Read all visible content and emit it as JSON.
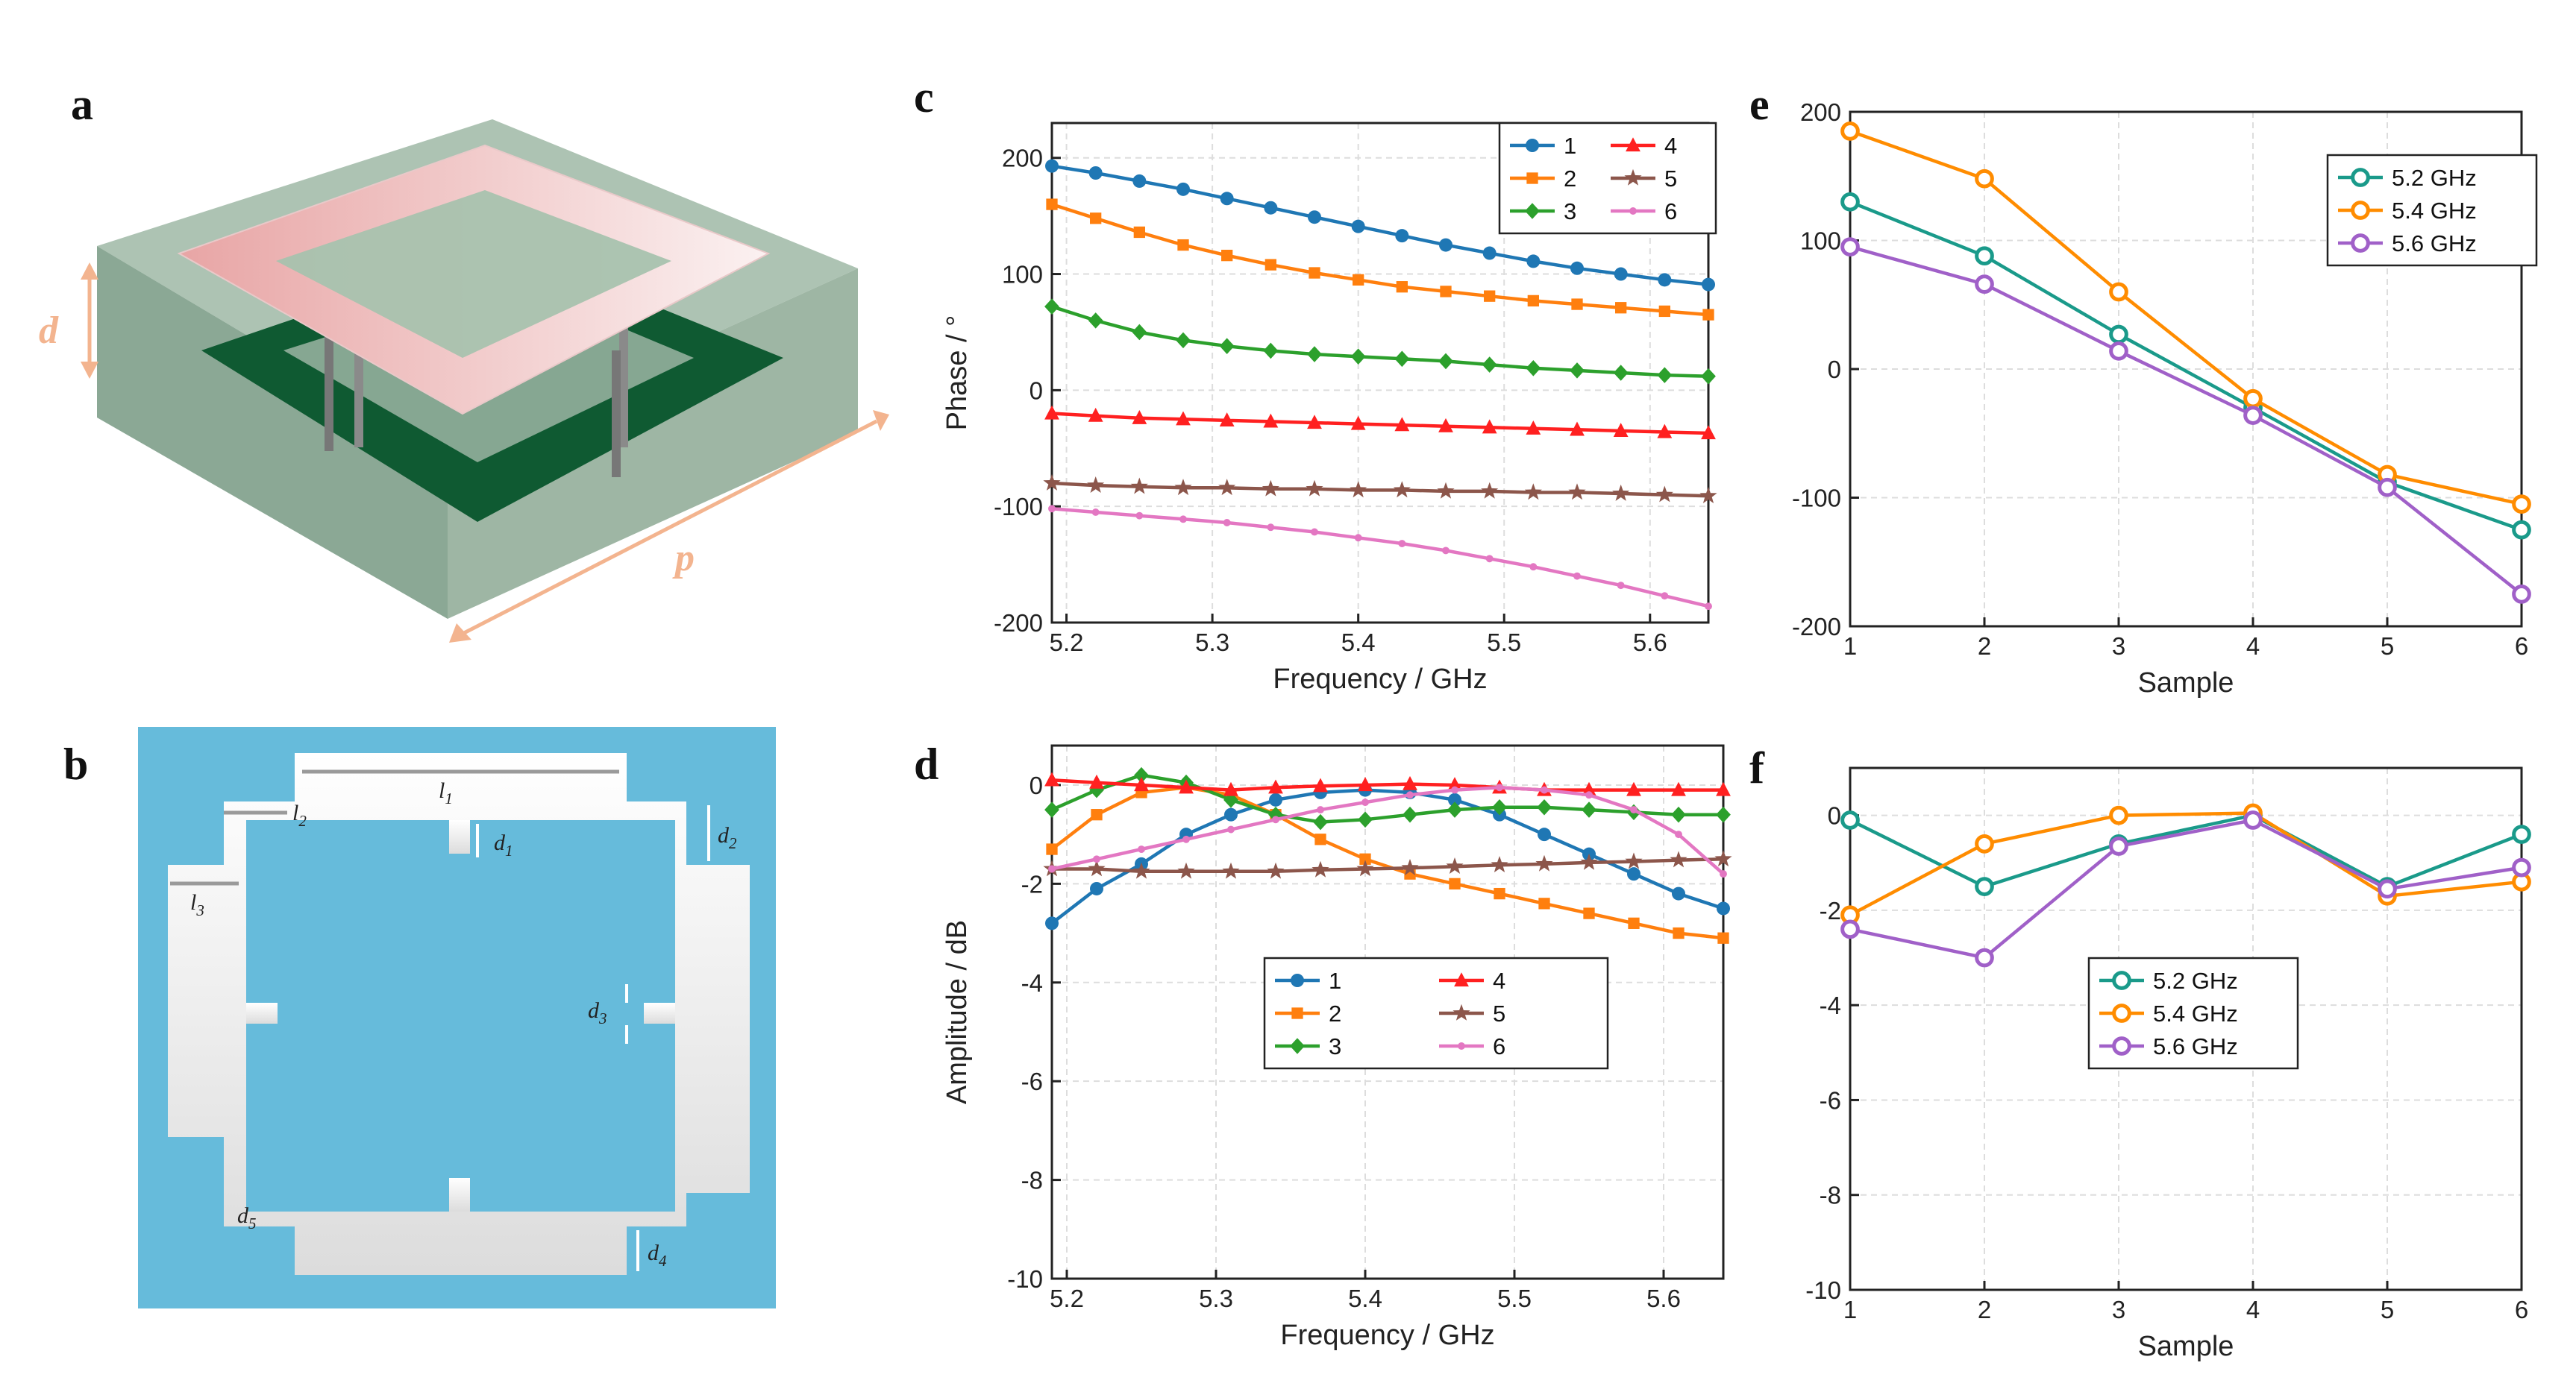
{
  "panels": {
    "a": {
      "letter": "a",
      "labels": {
        "d": "d",
        "p": "p"
      }
    },
    "b": {
      "letter": "b",
      "labels": {
        "l1": {
          "base": "l",
          "sub": "1"
        },
        "l2": {
          "base": "l",
          "sub": "2"
        },
        "l3": {
          "base": "l",
          "sub": "3"
        },
        "d1": {
          "base": "d",
          "sub": "1"
        },
        "d2": {
          "base": "d",
          "sub": "2"
        },
        "d3": {
          "base": "d",
          "sub": "3"
        },
        "d4": {
          "base": "d",
          "sub": "4"
        },
        "d5": {
          "base": "d",
          "sub": "5"
        }
      }
    },
    "c": {
      "letter": "c"
    },
    "d": {
      "letter": "d"
    },
    "e": {
      "letter": "e"
    },
    "f": {
      "letter": "f"
    }
  },
  "colors": {
    "accent_orange": "#f3b48f",
    "substrate": "#8aaa96",
    "copper_dark": "#0f5a32",
    "patch_pink": "#f0bfbf",
    "unit_bg": "#66bbdb",
    "metal": "#efefef",
    "grid": "#dddddd"
  },
  "chart_data": [
    {
      "id": "c",
      "type": "line",
      "xlabel": "Frequency / GHz",
      "ylabel": "Phase / °",
      "xlim": [
        5.19,
        5.64
      ],
      "ylim": [
        -200,
        230
      ],
      "xticks": [
        5.2,
        5.3,
        5.4,
        5.5,
        5.6
      ],
      "xtick_labels": [
        "5.2",
        "5.3",
        "5.4",
        "5.5",
        "5.6"
      ],
      "yticks": [
        -200,
        -100,
        0,
        100,
        200
      ],
      "ytick_labels": [
        "-200",
        "-100",
        "0",
        "100",
        "200"
      ],
      "grid": true,
      "legend_position": "top-right",
      "legend_columns": 2,
      "x": [
        5.19,
        5.22,
        5.25,
        5.28,
        5.31,
        5.34,
        5.37,
        5.4,
        5.43,
        5.46,
        5.49,
        5.52,
        5.55,
        5.58,
        5.61,
        5.64
      ],
      "series": [
        {
          "name": "1",
          "color": "#1f77b4",
          "marker": "circle",
          "values": [
            193,
            187,
            180,
            173,
            165,
            157,
            149,
            141,
            133,
            125,
            118,
            111,
            105,
            100,
            95,
            91
          ]
        },
        {
          "name": "2",
          "color": "#ff7f0e",
          "marker": "square",
          "values": [
            160,
            148,
            136,
            125,
            116,
            108,
            101,
            95,
            89,
            85,
            81,
            77,
            74,
            71,
            68,
            65
          ]
        },
        {
          "name": "3",
          "color": "#2ca02c",
          "marker": "diamond",
          "values": [
            72,
            60,
            50,
            43,
            38,
            34,
            31,
            29,
            27,
            25,
            22,
            19,
            17,
            15,
            13,
            12
          ]
        },
        {
          "name": "4",
          "color": "#ff2020",
          "marker": "triangle",
          "values": [
            -20,
            -22,
            -24,
            -25,
            -26,
            -27,
            -28,
            -29,
            -30,
            -31,
            -32,
            -33,
            -34,
            -35,
            -36,
            -37
          ]
        },
        {
          "name": "5",
          "color": "#8c564b",
          "marker": "star",
          "values": [
            -80,
            -82,
            -83,
            -84,
            -84,
            -85,
            -85,
            -86,
            -86,
            -87,
            -87,
            -88,
            -88,
            -89,
            -90,
            -91
          ]
        },
        {
          "name": "6",
          "color": "#e377c2",
          "marker": "dot",
          "values": [
            -102,
            -105,
            -108,
            -111,
            -114,
            -118,
            -122,
            -127,
            -132,
            -138,
            -145,
            -152,
            -160,
            -168,
            -177,
            -186
          ]
        }
      ]
    },
    {
      "id": "d",
      "type": "line",
      "xlabel": "Frequency / GHz",
      "ylabel": "Amplitude / dB",
      "xlim": [
        5.19,
        5.64
      ],
      "ylim": [
        -10,
        0.8
      ],
      "xticks": [
        5.2,
        5.3,
        5.4,
        5.5,
        5.6
      ],
      "xtick_labels": [
        "5.2",
        "5.3",
        "5.4",
        "5.5",
        "5.6"
      ],
      "yticks": [
        -10,
        -8,
        -6,
        -4,
        -2,
        0
      ],
      "ytick_labels": [
        "-10",
        "-8",
        "-6",
        "-4",
        "-2",
        "0"
      ],
      "grid": true,
      "legend_position": "center-left",
      "legend_columns": 2,
      "x": [
        5.19,
        5.22,
        5.25,
        5.28,
        5.31,
        5.34,
        5.37,
        5.4,
        5.43,
        5.46,
        5.49,
        5.52,
        5.55,
        5.58,
        5.61,
        5.64
      ],
      "series": [
        {
          "name": "1",
          "color": "#1f77b4",
          "marker": "circle",
          "values": [
            -2.8,
            -2.1,
            -1.6,
            -1.0,
            -0.6,
            -0.3,
            -0.15,
            -0.1,
            -0.15,
            -0.3,
            -0.6,
            -1.0,
            -1.4,
            -1.8,
            -2.2,
            -2.5
          ]
        },
        {
          "name": "2",
          "color": "#ff7f0e",
          "marker": "square",
          "values": [
            -1.3,
            -0.6,
            -0.15,
            -0.05,
            -0.2,
            -0.6,
            -1.1,
            -1.5,
            -1.8,
            -2.0,
            -2.2,
            -2.4,
            -2.6,
            -2.8,
            -3.0,
            -3.1
          ]
        },
        {
          "name": "3",
          "color": "#2ca02c",
          "marker": "diamond",
          "values": [
            -0.5,
            -0.1,
            0.2,
            0.05,
            -0.3,
            -0.6,
            -0.75,
            -0.7,
            -0.6,
            -0.5,
            -0.45,
            -0.45,
            -0.5,
            -0.55,
            -0.6,
            -0.6
          ]
        },
        {
          "name": "4",
          "color": "#ff2020",
          "marker": "triangle",
          "values": [
            0.1,
            0.05,
            0.0,
            -0.05,
            -0.1,
            -0.05,
            -0.02,
            0.0,
            0.02,
            0.0,
            -0.05,
            -0.1,
            -0.1,
            -0.1,
            -0.1,
            -0.1
          ]
        },
        {
          "name": "5",
          "color": "#8c564b",
          "marker": "star",
          "values": [
            -1.7,
            -1.7,
            -1.75,
            -1.75,
            -1.75,
            -1.75,
            -1.72,
            -1.7,
            -1.68,
            -1.65,
            -1.62,
            -1.6,
            -1.57,
            -1.55,
            -1.52,
            -1.5
          ]
        },
        {
          "name": "6",
          "color": "#e377c2",
          "marker": "dot",
          "values": [
            -1.7,
            -1.5,
            -1.3,
            -1.1,
            -0.9,
            -0.7,
            -0.5,
            -0.35,
            -0.2,
            -0.1,
            -0.05,
            -0.1,
            -0.2,
            -0.5,
            -1.0,
            -1.8
          ]
        }
      ]
    },
    {
      "id": "e",
      "type": "line",
      "xlabel": "Sample",
      "ylabel": "",
      "xlim": [
        1,
        6
      ],
      "ylim": [
        -200,
        200
      ],
      "xticks": [
        1,
        2,
        3,
        4,
        5,
        6
      ],
      "xtick_labels": [
        "1",
        "2",
        "3",
        "4",
        "5",
        "6"
      ],
      "yticks": [
        -200,
        -100,
        0,
        100,
        200
      ],
      "ytick_labels": [
        "-200",
        "-100",
        "0",
        "100",
        "200"
      ],
      "grid": true,
      "legend_position": "top-right",
      "legend_columns": 1,
      "x": [
        1,
        2,
        3,
        4,
        5,
        6
      ],
      "series": [
        {
          "name": "5.2 GHz",
          "color": "#1a9a8a",
          "marker": "open-circle",
          "values": [
            130,
            88,
            27,
            -30,
            -88,
            -125
          ]
        },
        {
          "name": "5.4 GHz",
          "color": "#ff8c00",
          "marker": "open-circle",
          "values": [
            185,
            148,
            60,
            -23,
            -82,
            -105
          ]
        },
        {
          "name": "5.6 GHz",
          "color": "#a060c8",
          "marker": "open-circle",
          "values": [
            95,
            66,
            14,
            -36,
            -92,
            -175
          ]
        }
      ]
    },
    {
      "id": "f",
      "type": "line",
      "xlabel": "Sample",
      "ylabel": "",
      "xlim": [
        1,
        6
      ],
      "ylim": [
        -10,
        1
      ],
      "xticks": [
        1,
        2,
        3,
        4,
        5,
        6
      ],
      "xtick_labels": [
        "1",
        "2",
        "3",
        "4",
        "5",
        "6"
      ],
      "yticks": [
        -10,
        -8,
        -6,
        -4,
        -2,
        0
      ],
      "ytick_labels": [
        "-10",
        "-8",
        "-6",
        "-4",
        "-2",
        "0"
      ],
      "grid": true,
      "legend_position": "center-left",
      "legend_columns": 1,
      "x": [
        1,
        2,
        3,
        4,
        5,
        6
      ],
      "series": [
        {
          "name": "5.2 GHz",
          "color": "#1a9a8a",
          "marker": "open-circle",
          "values": [
            -0.1,
            -1.5,
            -0.6,
            0.0,
            -1.5,
            -0.4
          ]
        },
        {
          "name": "5.4 GHz",
          "color": "#ff8c00",
          "marker": "open-circle",
          "values": [
            -2.1,
            -0.6,
            0.0,
            0.05,
            -1.7,
            -1.4
          ]
        },
        {
          "name": "5.6 GHz",
          "color": "#a060c8",
          "marker": "open-circle",
          "values": [
            -2.4,
            -3.0,
            -0.65,
            -0.1,
            -1.55,
            -1.1
          ]
        }
      ]
    }
  ]
}
